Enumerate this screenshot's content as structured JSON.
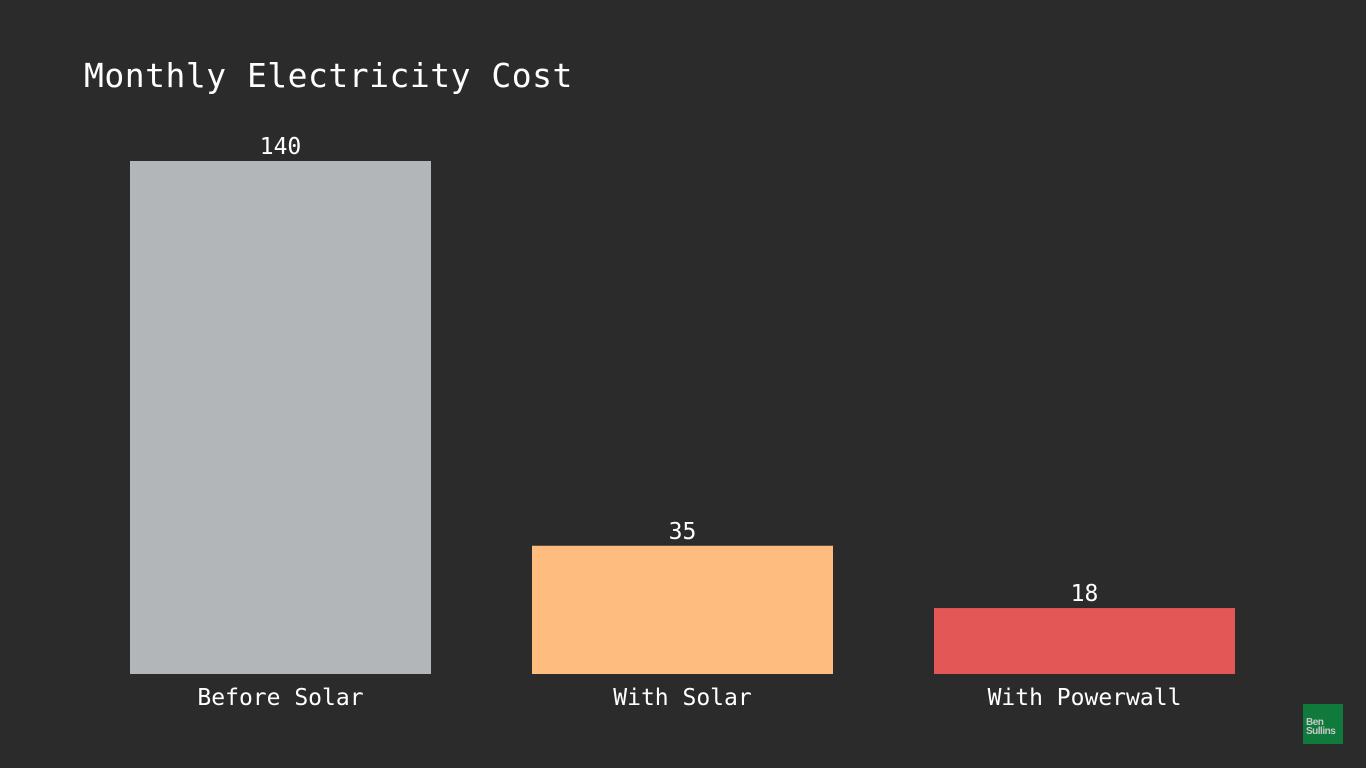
{
  "chart_data": {
    "type": "bar",
    "title": "Monthly Electricity Cost",
    "categories": [
      "Before Solar",
      "With Solar",
      "With Powerwall"
    ],
    "values": [
      140,
      35,
      18
    ],
    "colors": [
      "#b3b6b8",
      "#febc7e",
      "#e35757"
    ],
    "xlabel": "",
    "ylabel": "",
    "ylim": [
      0,
      140
    ],
    "grid": false,
    "legend": "none"
  },
  "logo": {
    "text": "Ben Sullins"
  }
}
